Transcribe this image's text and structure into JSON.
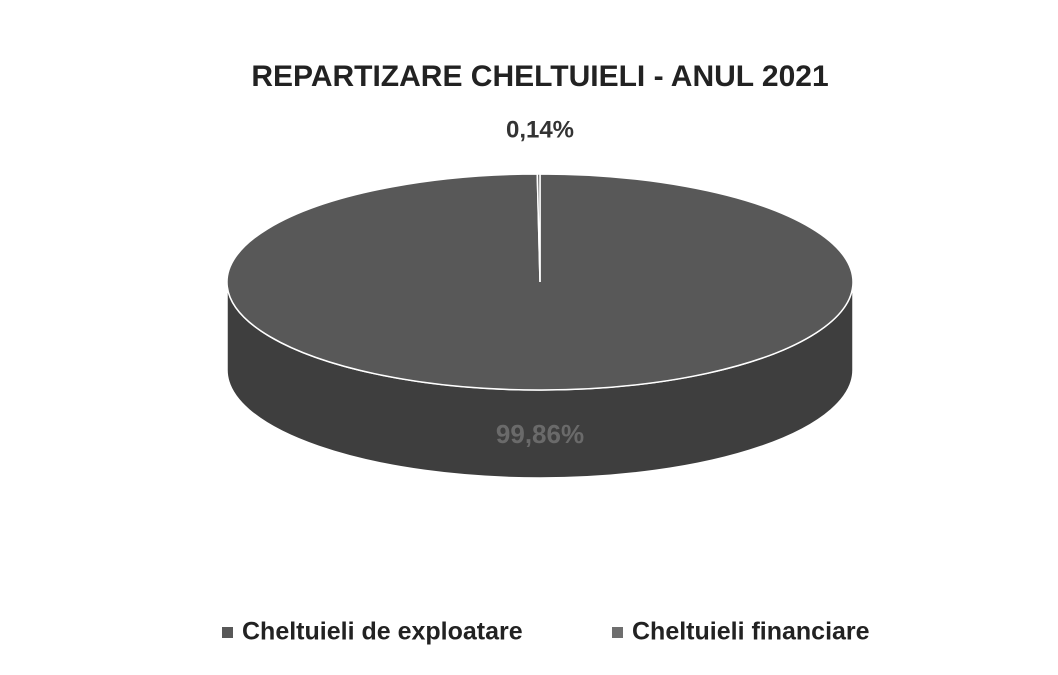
{
  "chart_data": {
    "type": "pie",
    "title": "REPARTIZARE CHELTUIELI - ANUL 2021",
    "categories": [
      "Cheltuieli de exploatare",
      "Cheltuieli financiare"
    ],
    "values": [
      99.86,
      0.14
    ],
    "value_labels": [
      "99,86%",
      "0,14%"
    ],
    "colors": [
      "#585858",
      "#6e6e6e"
    ],
    "legend": "bottom"
  }
}
